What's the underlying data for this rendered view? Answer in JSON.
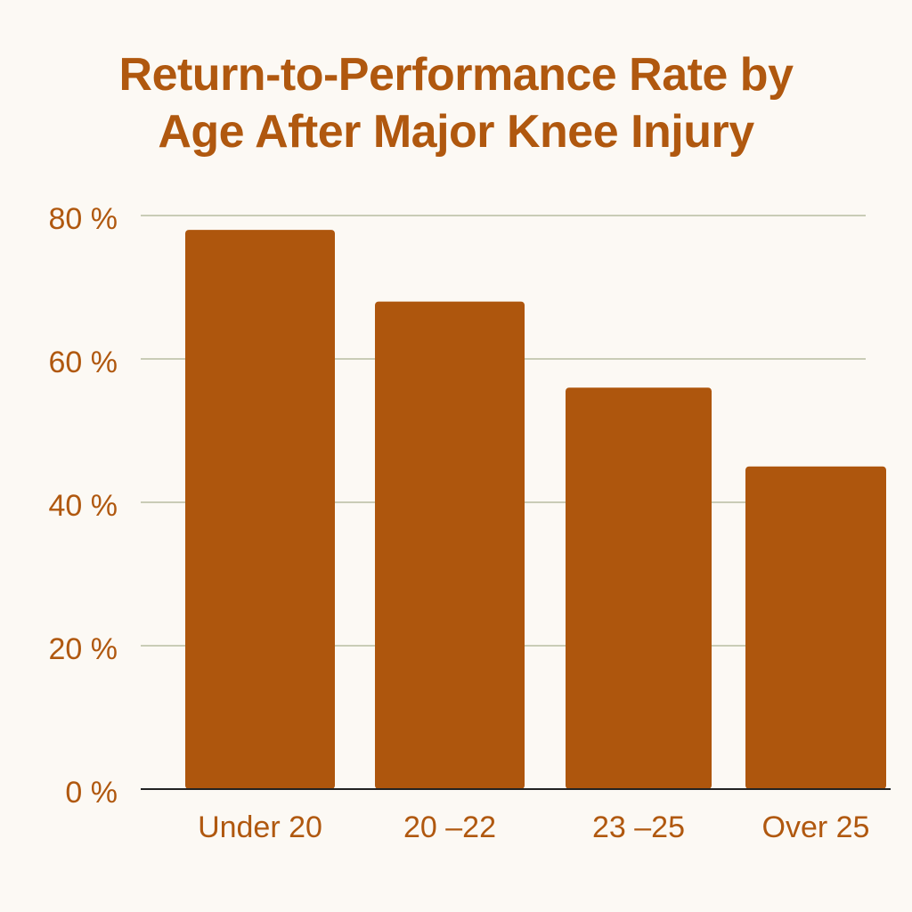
{
  "chart_data": {
    "type": "bar",
    "title": "Return-to-Performance Rate by Age After Major Knee Injury",
    "title_lines": [
      "Return-to-Performance Rate by",
      "Age After Major Knee Injury"
    ],
    "categories": [
      "Under 20",
      "20 –22",
      "23 –25",
      "Over 25"
    ],
    "values": [
      78,
      68,
      56,
      45
    ],
    "value_unit": "%",
    "yticks": [
      0,
      20,
      40,
      60,
      80
    ],
    "ytick_labels": [
      "0 %",
      "20 %",
      "40 %",
      "60 %",
      "80 %"
    ],
    "ylim": [
      0,
      80
    ],
    "xlabel": "",
    "ylabel": "",
    "grid": true,
    "legend": "none"
  },
  "colors": {
    "background": "#fcf9f4",
    "bar": "#ae560d",
    "text": "#b0580f",
    "grid": "#c9ccb6",
    "axis": "#222222"
  }
}
